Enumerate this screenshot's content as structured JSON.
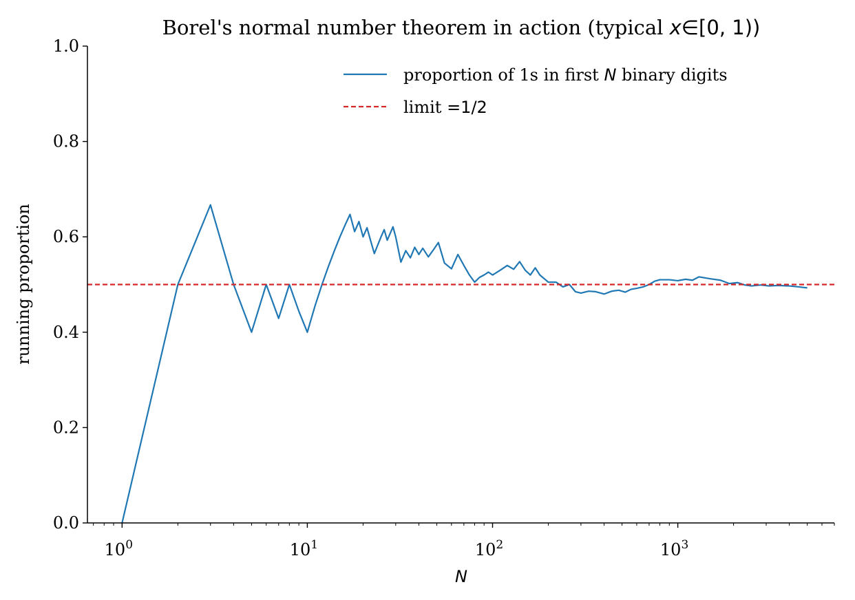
{
  "chart_data": {
    "type": "line",
    "title": {
      "text": "Borel's normal number theorem in action (typical ",
      "math_var": "x",
      "math_rest": "∈[0, 1))"
    },
    "xlabel": "N",
    "ylabel": "running proportion",
    "xscale": "log",
    "xlim": [
      0.65,
      7000
    ],
    "ylim": [
      0.0,
      1.0
    ],
    "grid": false,
    "legend_position": "top-right",
    "x_ticks": [
      {
        "base": "10",
        "exp": "0",
        "value": 1
      },
      {
        "base": "10",
        "exp": "1",
        "value": 10
      },
      {
        "base": "10",
        "exp": "2",
        "value": 100
      },
      {
        "base": "10",
        "exp": "3",
        "value": 1000
      }
    ],
    "y_ticks": [
      {
        "label": "0.0",
        "value": 0.0
      },
      {
        "label": "0.2",
        "value": 0.2
      },
      {
        "label": "0.4",
        "value": 0.4
      },
      {
        "label": "0.6",
        "value": 0.6
      },
      {
        "label": "0.8",
        "value": 0.8
      },
      {
        "label": "1.0",
        "value": 1.0
      }
    ],
    "series": [
      {
        "legend_parts": [
          "proportion of 1s in first ",
          "N",
          " binary digits"
        ],
        "color": "#1f77b4",
        "style": "solid",
        "x": [
          1,
          2,
          3,
          4,
          5,
          6,
          7,
          8,
          9,
          10,
          11,
          12,
          13,
          14,
          15,
          16,
          17,
          18,
          19,
          20,
          21,
          22,
          23,
          24,
          25,
          26,
          27,
          28,
          29,
          30,
          32,
          34,
          36,
          38,
          40,
          42,
          45,
          48,
          51,
          55,
          60,
          65,
          70,
          75,
          80,
          85,
          90,
          95,
          100,
          110,
          120,
          130,
          140,
          150,
          160,
          170,
          180,
          200,
          220,
          240,
          260,
          280,
          300,
          330,
          360,
          400,
          440,
          480,
          520,
          560,
          600,
          650,
          700,
          750,
          800,
          900,
          1000,
          1100,
          1200,
          1300,
          1400,
          1500,
          1700,
          1900,
          2100,
          2300,
          2500,
          2800,
          3100,
          3500,
          4000,
          4500,
          5000
        ],
        "y": [
          0.0,
          0.5,
          0.667,
          0.5,
          0.4,
          0.5,
          0.429,
          0.5,
          0.444,
          0.4,
          0.455,
          0.5,
          0.538,
          0.571,
          0.6,
          0.625,
          0.647,
          0.611,
          0.632,
          0.6,
          0.619,
          0.591,
          0.565,
          0.583,
          0.6,
          0.615,
          0.593,
          0.607,
          0.621,
          0.6,
          0.547,
          0.571,
          0.556,
          0.578,
          0.563,
          0.576,
          0.558,
          0.573,
          0.588,
          0.545,
          0.533,
          0.563,
          0.54,
          0.52,
          0.505,
          0.515,
          0.52,
          0.526,
          0.52,
          0.53,
          0.54,
          0.532,
          0.548,
          0.53,
          0.52,
          0.535,
          0.52,
          0.505,
          0.505,
          0.495,
          0.5,
          0.485,
          0.482,
          0.486,
          0.485,
          0.48,
          0.486,
          0.488,
          0.484,
          0.49,
          0.492,
          0.495,
          0.5,
          0.507,
          0.51,
          0.51,
          0.508,
          0.511,
          0.509,
          0.516,
          0.514,
          0.512,
          0.509,
          0.502,
          0.504,
          0.499,
          0.497,
          0.499,
          0.497,
          0.498,
          0.497,
          0.495,
          0.493
        ]
      },
      {
        "legend_parts": [
          "limit ",
          "=1/2"
        ],
        "color": "#d62728",
        "style": "dashed",
        "y_constant": 0.5
      }
    ]
  }
}
